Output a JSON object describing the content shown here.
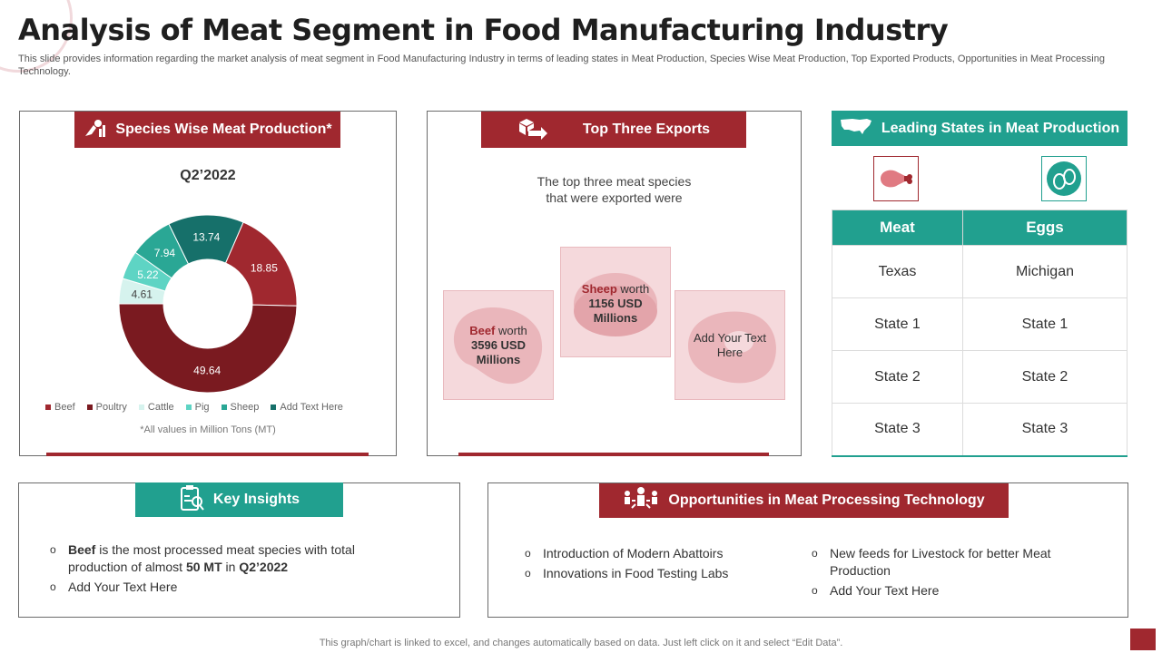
{
  "header": {
    "title": "Analysis of Meat Segment in Food Manufacturing Industry",
    "subtitle": "This slide provides information regarding the market analysis of meat segment in Food Manufacturing Industry in terms of leading states in Meat Production, Species Wise Meat Production, Top Exported Products, Opportunities in Meat Processing Technology."
  },
  "species": {
    "heading": "Species Wise Meat Production*",
    "period": "Q2’2022",
    "note": "*All values in Million Tons (MT)"
  },
  "chart_data": {
    "type": "pie",
    "title": "Q2’2022",
    "categories": [
      "Beef",
      "Poultry",
      "Cattle",
      "Pig",
      "Sheep",
      "Add Text Here"
    ],
    "values": [
      49.64,
      18.85,
      4.61,
      5.22,
      7.94,
      13.74
    ],
    "labels": [
      "49.64",
      "18.85",
      "4.61",
      "5.22",
      "7.94",
      "13.74"
    ],
    "colors": [
      "#7a1a20",
      "#a0282f",
      "#d6f3ee",
      "#5ed4c4",
      "#2aa795",
      "#16706a"
    ],
    "label_colors": [
      "#ffffff",
      "#ffffff",
      "#444444",
      "#ffffff",
      "#ffffff",
      "#ffffff"
    ],
    "legend_colors": [
      "#a0282f",
      "#7a1a20",
      "#d6f3ee",
      "#5ed4c4",
      "#2aa795",
      "#16706a"
    ],
    "hole": "donut",
    "legend": "bottom"
  },
  "exports": {
    "heading": "Top Three Exports",
    "intro_line1": "The top three meat species",
    "intro_line2": "that were exported were",
    "beef": {
      "name": "Beef",
      "worth": " worth",
      "value": "3596 USD",
      "unit": "Millions"
    },
    "sheep": {
      "name": "Sheep",
      "worth": " worth",
      "value": "1156 USD",
      "unit": "Millions"
    },
    "third": {
      "line1": "Add Your Text",
      "line2": "Here"
    }
  },
  "states": {
    "heading": "Leading States in Meat Production",
    "columns": [
      "Meat",
      "Eggs"
    ],
    "rows": [
      [
        "Texas",
        "Michigan"
      ],
      [
        "State 1",
        "State 1"
      ],
      [
        "State 2",
        "State 2"
      ],
      [
        "State 3",
        "State 3"
      ]
    ],
    "meat_icon": "ham-icon",
    "eggs_icon": "eggs-icon"
  },
  "insights": {
    "heading": "Key Insights",
    "item1": {
      "bold1": "Beef",
      "text1": " is the most processed meat species with total production of almost ",
      "bold2": "50 MT",
      "text2": " in ",
      "bold3": "Q2’2022"
    },
    "item2": "Add Your Text Here"
  },
  "opportunities": {
    "heading": "Opportunities in Meat Processing Technology",
    "left": [
      "Introduction of Modern Abattoirs",
      "Innovations in Food Testing Labs"
    ],
    "right": [
      "New feeds for Livestock for better Meat Production",
      "Add Your Text Here"
    ]
  },
  "footer": "This graph/chart is linked to excel,  and changes automatically based on data. Just left click on it and select “Edit Data”.",
  "colors": {
    "red": "#a0282f",
    "teal": "#21a08f"
  }
}
